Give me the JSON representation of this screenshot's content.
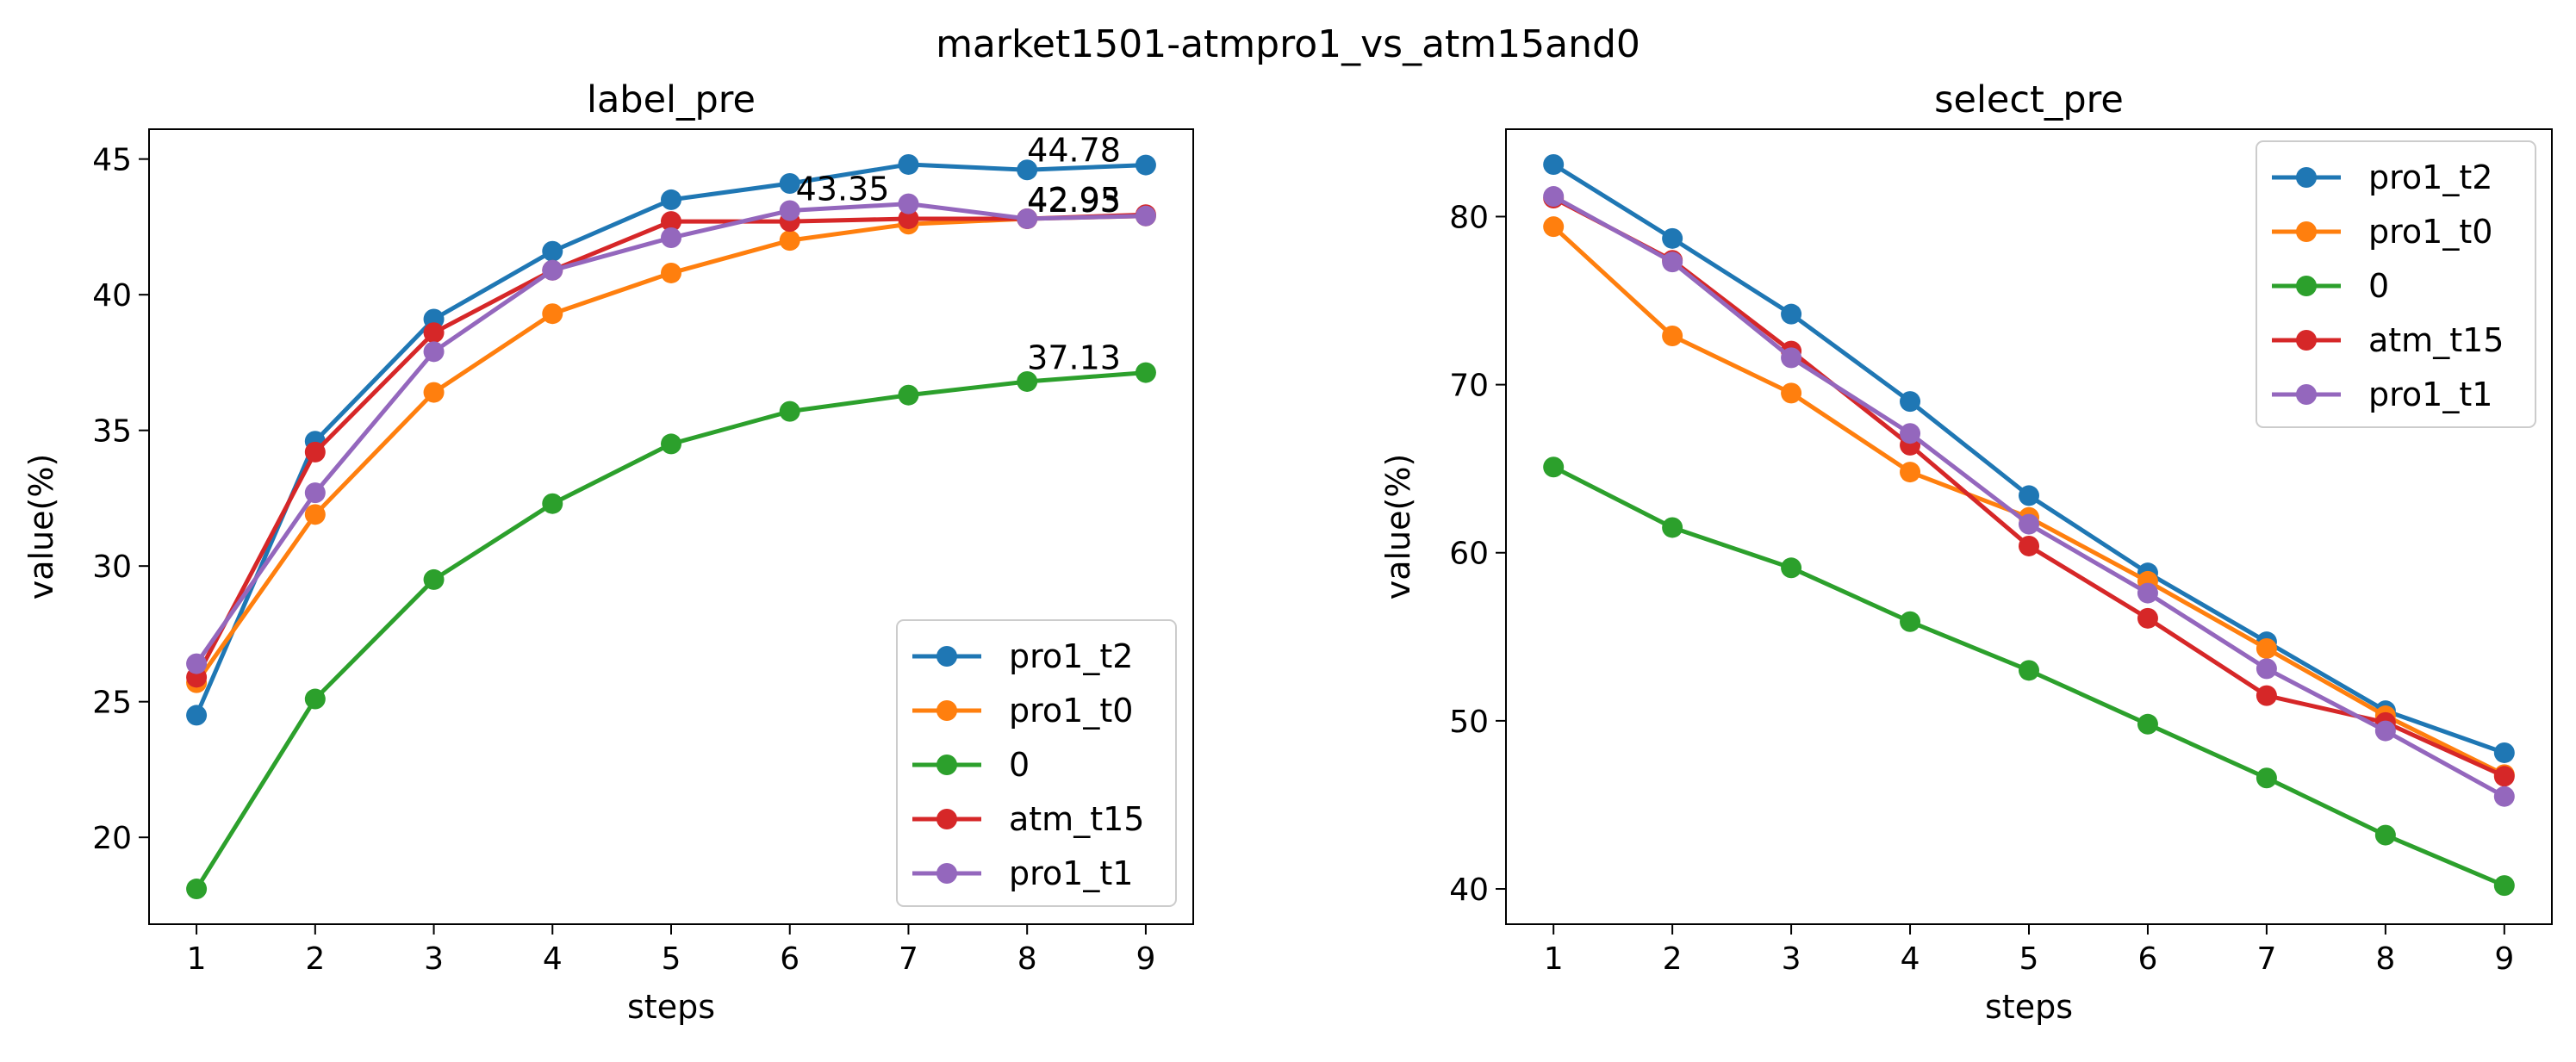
{
  "suptitle": "market1501-atmpro1_vs_atm15and0",
  "colors": {
    "pro1_t2": "#1f77b4",
    "pro1_t0": "#ff7f0e",
    "0": "#2ca02c",
    "atm_t15": "#d62728",
    "pro1_t1": "#9467bd"
  },
  "chart_data": [
    {
      "type": "line",
      "title": "label_pre",
      "xlabel": "steps",
      "ylabel": "value(%)",
      "x": [
        1,
        2,
        3,
        4,
        5,
        6,
        7,
        8,
        9
      ],
      "xlim": [
        0.6,
        9.4
      ],
      "ylim": [
        16.8,
        46.1
      ],
      "xticks": [
        1,
        2,
        3,
        4,
        5,
        6,
        7,
        8,
        9
      ],
      "yticks": [
        20,
        25,
        30,
        35,
        40,
        45
      ],
      "legend": "lower-right",
      "series": [
        {
          "name": "pro1_t2",
          "values": [
            24.5,
            34.6,
            39.1,
            41.6,
            43.5,
            44.1,
            44.8,
            44.6,
            44.78
          ]
        },
        {
          "name": "pro1_t0",
          "values": [
            25.7,
            31.9,
            36.4,
            39.3,
            40.8,
            42.0,
            42.6,
            42.8,
            42.9
          ]
        },
        {
          "name": "0",
          "values": [
            18.1,
            25.1,
            29.5,
            32.3,
            34.5,
            35.7,
            36.3,
            36.8,
            37.13
          ]
        },
        {
          "name": "atm_t15",
          "values": [
            25.9,
            34.2,
            38.6,
            40.9,
            42.7,
            42.7,
            42.8,
            42.8,
            42.95
          ]
        },
        {
          "name": "pro1_t1",
          "values": [
            26.4,
            32.7,
            37.9,
            40.9,
            42.1,
            43.1,
            43.35,
            42.8,
            42.9
          ]
        }
      ],
      "annotations": [
        {
          "x": 6.05,
          "y": 43.35,
          "text": "43.35"
        },
        {
          "x": 8.0,
          "y": 44.78,
          "text": "44.78"
        },
        {
          "x": 8.0,
          "y": 42.93,
          "text": "42.93"
        },
        {
          "x": 8.0,
          "y": 42.95,
          "text": "42.95"
        },
        {
          "x": 8.0,
          "y": 37.13,
          "text": "37.13"
        }
      ]
    },
    {
      "type": "line",
      "title": "select_pre",
      "xlabel": "steps",
      "ylabel": "value(%)",
      "x": [
        1,
        2,
        3,
        4,
        5,
        6,
        7,
        8,
        9
      ],
      "xlim": [
        0.6,
        9.4
      ],
      "ylim": [
        37.9,
        85.2
      ],
      "xticks": [
        1,
        2,
        3,
        4,
        5,
        6,
        7,
        8,
        9
      ],
      "yticks": [
        40,
        50,
        60,
        70,
        80
      ],
      "legend": "upper-right",
      "series": [
        {
          "name": "pro1_t2",
          "values": [
            83.1,
            78.7,
            74.2,
            69.0,
            63.4,
            58.8,
            54.7,
            50.6,
            48.1
          ]
        },
        {
          "name": "pro1_t0",
          "values": [
            79.4,
            72.9,
            69.5,
            64.8,
            62.1,
            58.3,
            54.3,
            50.3,
            46.8
          ]
        },
        {
          "name": "0",
          "values": [
            65.1,
            61.5,
            59.1,
            55.9,
            53.0,
            49.8,
            46.6,
            43.2,
            40.2
          ]
        },
        {
          "name": "atm_t15",
          "values": [
            81.1,
            77.4,
            72.0,
            66.4,
            60.4,
            56.1,
            51.5,
            49.9,
            46.7
          ]
        },
        {
          "name": "pro1_t1",
          "values": [
            81.2,
            77.3,
            71.6,
            67.1,
            61.7,
            57.6,
            53.1,
            49.4,
            45.5
          ]
        }
      ],
      "annotations": []
    }
  ]
}
